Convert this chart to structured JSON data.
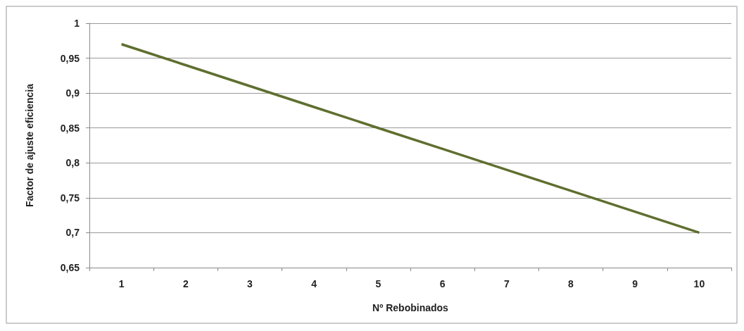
{
  "chart_data": {
    "type": "line",
    "xlabel": "Nº Rebobinados",
    "ylabel": "Factor de ajuste eficiencia",
    "categories": [
      "1",
      "2",
      "3",
      "4",
      "5",
      "6",
      "7",
      "8",
      "9",
      "10"
    ],
    "series": [
      {
        "color": "#5f6f2f",
        "values": [
          0.97,
          0.94,
          0.91,
          0.88,
          0.85,
          0.82,
          0.79,
          0.76,
          0.73,
          0.7
        ]
      }
    ],
    "ylim": [
      0.65,
      1
    ],
    "yticks": [
      {
        "value": 0.65,
        "label": "0,65"
      },
      {
        "value": 0.7,
        "label": "0,7"
      },
      {
        "value": 0.75,
        "label": "0,75"
      },
      {
        "value": 0.8,
        "label": "0,8"
      },
      {
        "value": 0.85,
        "label": "0,85"
      },
      {
        "value": 0.9,
        "label": "0,9"
      },
      {
        "value": 0.95,
        "label": "0,95"
      },
      {
        "value": 1,
        "label": "1"
      }
    ],
    "grid": "y",
    "marker": "none",
    "line_style": "solid"
  }
}
